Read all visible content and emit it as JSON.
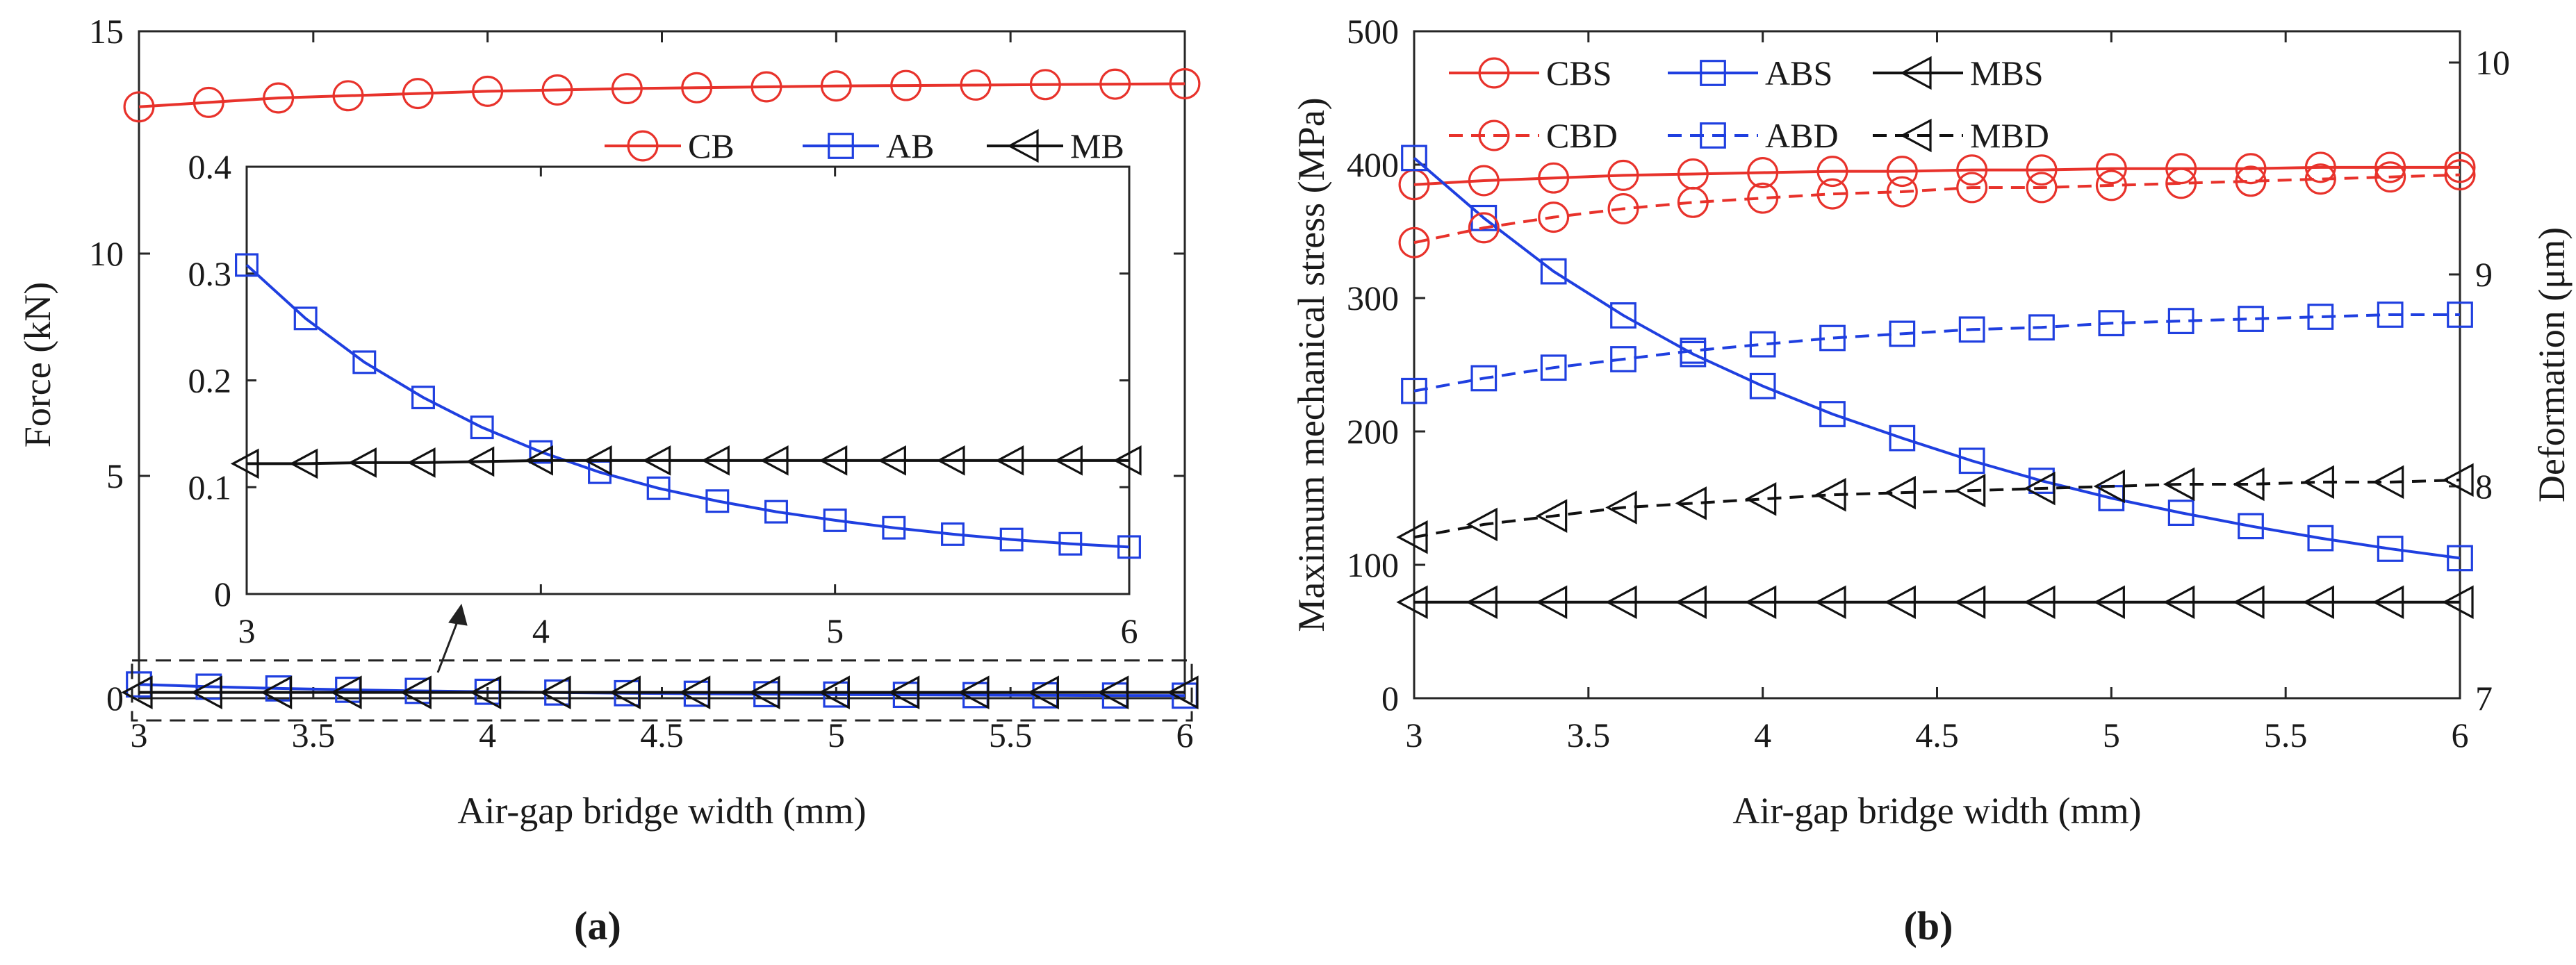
{
  "chart_data": [
    {
      "type": "line",
      "panel": "(a)",
      "xlabel": "Air-gap bridge width (mm)",
      "ylabel": "Force (kN)",
      "xlim": [
        3,
        6
      ],
      "ylim": [
        0,
        15
      ],
      "xticks": [
        "3",
        "3.5",
        "4",
        "4.5",
        "5",
        "5.5",
        "6"
      ],
      "yticks": [
        "0",
        "5",
        "10",
        "15"
      ],
      "grid": false,
      "legend_position": "top-right",
      "x": [
        3.0,
        3.2,
        3.4,
        3.6,
        3.8,
        4.0,
        4.2,
        4.4,
        4.6,
        4.8,
        5.0,
        5.2,
        5.4,
        5.6,
        5.8,
        6.0
      ],
      "series": [
        {
          "name": "CB",
          "color": "#e8322b",
          "marker": "circle",
          "dashed": false,
          "values": [
            13.3,
            13.4,
            13.5,
            13.55,
            13.6,
            13.65,
            13.68,
            13.71,
            13.73,
            13.75,
            13.77,
            13.78,
            13.79,
            13.8,
            13.81,
            13.82
          ]
        },
        {
          "name": "AB",
          "color": "#1f3fe0",
          "marker": "square",
          "dashed": false,
          "values": [
            0.31,
            0.26,
            0.22,
            0.19,
            0.165,
            0.145,
            0.128,
            0.113,
            0.101,
            0.091,
            0.083,
            0.076,
            0.07,
            0.065,
            0.061,
            0.058
          ]
        },
        {
          "name": "MB",
          "color": "#111111",
          "marker": "triangle-left",
          "dashed": false,
          "values": [
            0.13,
            0.13,
            0.13,
            0.13,
            0.13,
            0.13,
            0.13,
            0.13,
            0.13,
            0.13,
            0.13,
            0.13,
            0.13,
            0.13,
            0.13,
            0.13
          ]
        }
      ],
      "inset": {
        "xlim": [
          3,
          6
        ],
        "ylim": [
          0,
          0.4
        ],
        "xticks": [
          "3",
          "4",
          "5",
          "6"
        ],
        "yticks": [
          "0",
          "0.1",
          "0.2",
          "0.3",
          "0.4"
        ],
        "x": [
          3.0,
          3.2,
          3.4,
          3.6,
          3.8,
          4.0,
          4.2,
          4.4,
          4.6,
          4.8,
          5.0,
          5.2,
          5.4,
          5.6,
          5.8,
          6.0
        ],
        "series": [
          {
            "name": "AB",
            "color": "#1f3fe0",
            "marker": "square",
            "values": [
              0.308,
              0.258,
              0.217,
              0.184,
              0.156,
              0.133,
              0.114,
              0.099,
              0.087,
              0.077,
              0.069,
              0.062,
              0.056,
              0.051,
              0.047,
              0.044
            ]
          },
          {
            "name": "MB",
            "color": "#111111",
            "marker": "triangle-left",
            "values": [
              0.122,
              0.122,
              0.123,
              0.123,
              0.124,
              0.125,
              0.125,
              0.125,
              0.125,
              0.125,
              0.125,
              0.125,
              0.125,
              0.125,
              0.125,
              0.125
            ]
          }
        ]
      }
    },
    {
      "type": "line",
      "panel": "(b)",
      "xlabel": "Air-gap bridge width (mm)",
      "ylabel": "Maximum mechanical stress (MPa)",
      "y2label": "Deformation (μm)",
      "xlim": [
        3,
        6
      ],
      "ylim": [
        0,
        500
      ],
      "y2lim": [
        7,
        10
      ],
      "xticks": [
        "3",
        "3.5",
        "4",
        "4.5",
        "5",
        "5.5",
        "6"
      ],
      "yticks": [
        "0",
        "100",
        "200",
        "300",
        "400",
        "500"
      ],
      "y2ticks": [
        "7",
        "8",
        "9",
        "10"
      ],
      "grid": false,
      "legend_position": "top",
      "x": [
        3.0,
        3.2,
        3.4,
        3.6,
        3.8,
        4.0,
        4.2,
        4.4,
        4.6,
        4.8,
        5.0,
        5.2,
        5.4,
        5.6,
        5.8,
        6.0
      ],
      "series": [
        {
          "name": "CBS",
          "axis": "left",
          "color": "#e8322b",
          "marker": "circle",
          "dashed": false,
          "values": [
            385,
            388,
            390,
            392,
            393,
            394,
            395,
            395,
            396,
            396,
            397,
            397,
            397,
            398,
            398,
            398
          ]
        },
        {
          "name": "ABS",
          "axis": "left",
          "color": "#1f3fe0",
          "marker": "square",
          "dashed": false,
          "values": [
            405,
            360,
            320,
            287,
            258,
            234,
            213,
            195,
            178,
            163,
            150,
            139,
            129,
            120,
            112,
            105
          ]
        },
        {
          "name": "MBS",
          "axis": "left",
          "color": "#111111",
          "marker": "triangle-left",
          "dashed": false,
          "values": [
            72,
            72,
            72,
            72,
            72,
            72,
            72,
            72,
            72,
            72,
            72,
            72,
            72,
            72,
            72,
            72
          ]
        },
        {
          "name": "CBD",
          "axis": "right",
          "color": "#e8322b",
          "marker": "circle",
          "dashed": true,
          "values": [
            9.15,
            9.22,
            9.27,
            9.31,
            9.34,
            9.36,
            9.38,
            9.39,
            9.41,
            9.41,
            9.42,
            9.43,
            9.44,
            9.45,
            9.46,
            9.47
          ]
        },
        {
          "name": "ABD",
          "axis": "right",
          "color": "#1f3fe0",
          "marker": "square",
          "dashed": true,
          "values": [
            8.45,
            8.51,
            8.56,
            8.6,
            8.64,
            8.67,
            8.7,
            8.72,
            8.74,
            8.75,
            8.77,
            8.78,
            8.79,
            8.8,
            8.81,
            8.81
          ]
        },
        {
          "name": "MBD",
          "axis": "right",
          "color": "#111111",
          "marker": "triangle-left",
          "dashed": true,
          "values": [
            7.76,
            7.82,
            7.86,
            7.9,
            7.92,
            7.94,
            7.96,
            7.97,
            7.98,
            7.99,
            8.0,
            8.01,
            8.01,
            8.02,
            8.02,
            8.03
          ]
        }
      ]
    }
  ]
}
